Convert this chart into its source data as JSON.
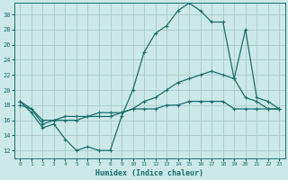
{
  "xlabel": "Humidex (Indice chaleur)",
  "background_color": "#cce8e8",
  "grid_color": "#aacccc",
  "line_color": "#1a6e6e",
  "xlim": [
    -0.5,
    23.5
  ],
  "ylim": [
    11,
    31.5
  ],
  "yticks": [
    12,
    14,
    16,
    18,
    20,
    22,
    24,
    26,
    28,
    30
  ],
  "xticks": [
    0,
    1,
    2,
    3,
    4,
    5,
    6,
    7,
    8,
    9,
    10,
    11,
    12,
    13,
    14,
    15,
    16,
    17,
    18,
    19,
    20,
    21,
    22,
    23
  ],
  "series1_x": [
    0,
    1,
    2,
    3,
    4,
    5,
    6,
    7,
    8,
    9,
    10,
    11,
    12,
    13,
    14,
    15,
    16,
    17,
    18,
    19,
    20,
    21,
    22,
    23
  ],
  "series1_y": [
    18.5,
    17.0,
    15.0,
    15.5,
    13.5,
    12.0,
    12.5,
    12.0,
    12.0,
    16.5,
    20.0,
    25.0,
    27.5,
    28.5,
    30.5,
    31.5,
    30.5,
    29.0,
    29.0,
    21.5,
    19.0,
    18.5,
    17.5,
    17.5
  ],
  "series2_x": [
    0,
    1,
    2,
    3,
    4,
    5,
    6,
    7,
    8,
    9,
    10,
    11,
    12,
    13,
    14,
    15,
    16,
    17,
    18,
    19,
    20,
    21,
    22,
    23
  ],
  "series2_y": [
    18.0,
    17.5,
    15.5,
    16.0,
    16.0,
    16.0,
    16.5,
    16.5,
    16.5,
    17.0,
    17.5,
    18.5,
    19.0,
    20.0,
    21.0,
    21.5,
    22.0,
    22.5,
    22.0,
    21.5,
    28.0,
    19.0,
    18.5,
    17.5
  ],
  "series3_x": [
    0,
    1,
    2,
    3,
    4,
    5,
    6,
    7,
    8,
    9,
    10,
    11,
    12,
    13,
    14,
    15,
    16,
    17,
    18,
    19,
    20,
    21,
    22,
    23
  ],
  "series3_y": [
    18.5,
    17.5,
    16.0,
    16.0,
    16.5,
    16.5,
    16.5,
    17.0,
    17.0,
    17.0,
    17.5,
    17.5,
    17.5,
    18.0,
    18.0,
    18.5,
    18.5,
    18.5,
    18.5,
    17.5,
    17.5,
    17.5,
    17.5,
    17.5
  ]
}
